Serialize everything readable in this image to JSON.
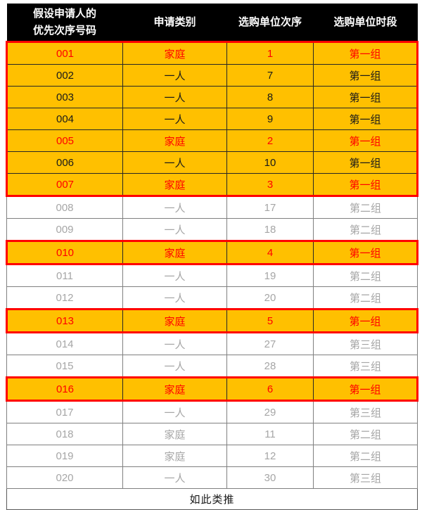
{
  "header": {
    "col1_line1": "假设申请人的",
    "col1_line2": "优先次序号码",
    "col2": "申请类别",
    "col3": "选购单位次序",
    "col4": "选购单位时段"
  },
  "rows": [
    {
      "number": "001",
      "category": "家庭",
      "order": "1",
      "period": "第一组",
      "highlighted": true,
      "text_color": "red",
      "red_box": "top"
    },
    {
      "number": "002",
      "category": "一人",
      "order": "7",
      "period": "第一组",
      "highlighted": true,
      "text_color": "black",
      "red_box": "mid"
    },
    {
      "number": "003",
      "category": "一人",
      "order": "8",
      "period": "第一组",
      "highlighted": true,
      "text_color": "black",
      "red_box": "mid"
    },
    {
      "number": "004",
      "category": "一人",
      "order": "9",
      "period": "第一组",
      "highlighted": true,
      "text_color": "black",
      "red_box": "mid"
    },
    {
      "number": "005",
      "category": "家庭",
      "order": "2",
      "period": "第一组",
      "highlighted": true,
      "text_color": "red",
      "red_box": "mid"
    },
    {
      "number": "006",
      "category": "一人",
      "order": "10",
      "period": "第一组",
      "highlighted": true,
      "text_color": "black",
      "red_box": "mid"
    },
    {
      "number": "007",
      "category": "家庭",
      "order": "3",
      "period": "第一组",
      "highlighted": true,
      "text_color": "red",
      "red_box": "bottom"
    },
    {
      "number": "008",
      "category": "一人",
      "order": "17",
      "period": "第二组",
      "highlighted": false,
      "text_color": "gray",
      "red_box": null
    },
    {
      "number": "009",
      "category": "一人",
      "order": "18",
      "period": "第二组",
      "highlighted": false,
      "text_color": "gray",
      "red_box": null
    },
    {
      "number": "010",
      "category": "家庭",
      "order": "4",
      "period": "第一组",
      "highlighted": true,
      "text_color": "red",
      "red_box": "single"
    },
    {
      "number": "011",
      "category": "一人",
      "order": "19",
      "period": "第二组",
      "highlighted": false,
      "text_color": "gray",
      "red_box": null
    },
    {
      "number": "012",
      "category": "一人",
      "order": "20",
      "period": "第二组",
      "highlighted": false,
      "text_color": "gray",
      "red_box": null
    },
    {
      "number": "013",
      "category": "家庭",
      "order": "5",
      "period": "第一组",
      "highlighted": true,
      "text_color": "red",
      "red_box": "single"
    },
    {
      "number": "014",
      "category": "一人",
      "order": "27",
      "period": "第三组",
      "highlighted": false,
      "text_color": "gray",
      "red_box": null
    },
    {
      "number": "015",
      "category": "一人",
      "order": "28",
      "period": "第三组",
      "highlighted": false,
      "text_color": "gray",
      "red_box": null
    },
    {
      "number": "016",
      "category": "家庭",
      "order": "6",
      "period": "第一组",
      "highlighted": true,
      "text_color": "red",
      "red_box": "single"
    },
    {
      "number": "017",
      "category": "一人",
      "order": "29",
      "period": "第三组",
      "highlighted": false,
      "text_color": "gray",
      "red_box": null
    },
    {
      "number": "018",
      "category": "家庭",
      "order": "11",
      "period": "第二组",
      "highlighted": false,
      "text_color": "gray",
      "red_box": null
    },
    {
      "number": "019",
      "category": "家庭",
      "order": "12",
      "period": "第二组",
      "highlighted": false,
      "text_color": "gray",
      "red_box": null
    },
    {
      "number": "020",
      "category": "一人",
      "order": "30",
      "period": "第三组",
      "highlighted": false,
      "text_color": "gray",
      "red_box": null
    }
  ],
  "footer_note": "如此类推",
  "colors": {
    "header_bg": "#000000",
    "header_text": "#ffffff",
    "highlight_bg": "#ffc000",
    "red": "#ff0000",
    "black_text": "#1a1a1a",
    "gray_text": "#a6a6a6",
    "grid_gray": "#808080",
    "grid_dark": "#262626"
  }
}
